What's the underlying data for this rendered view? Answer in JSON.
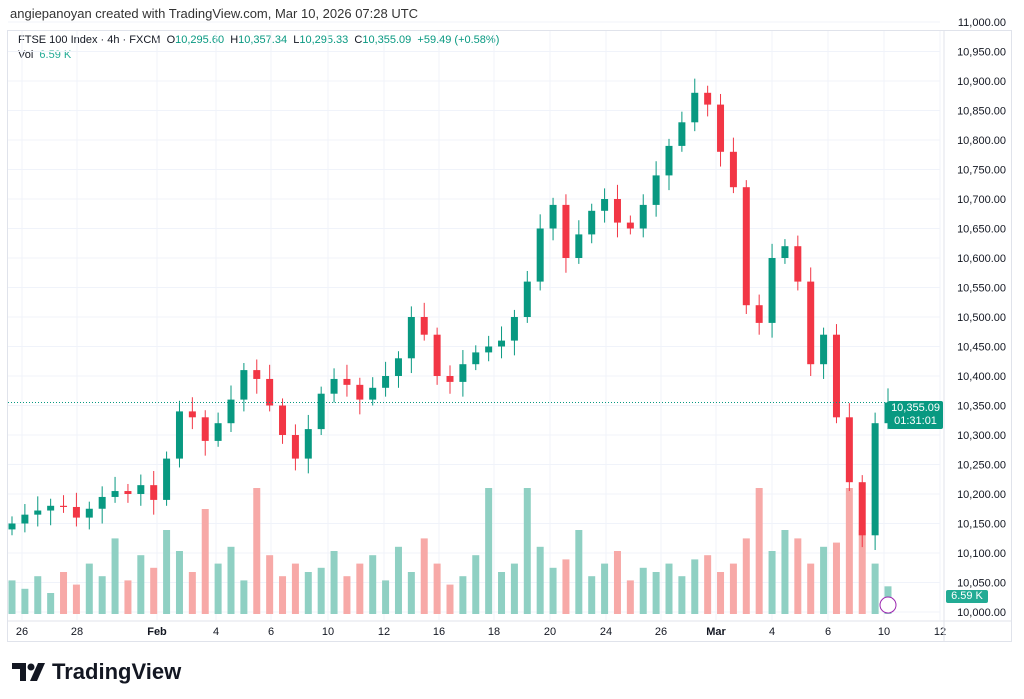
{
  "credit": "angiepanoyan created with TradingView.com, Mar 10, 2026 07:28 UTC",
  "legend": {
    "symbol": "FTSE 100 Index · 4h · FXCM",
    "o_label": "O",
    "o": "10,295.60",
    "h_label": "H",
    "h": "10,357.34",
    "l_label": "L",
    "l": "10,295.33",
    "c_label": "C",
    "c": "10,355.09",
    "change": "+59.49 (+0.58%)",
    "vol_label": "Vol",
    "vol": "6.59 K"
  },
  "price_label": {
    "price": "10,355.09",
    "countdown": "01:31:01"
  },
  "vol_label": "6.59 K",
  "logo": "TradingView",
  "colors": {
    "up": "#089981",
    "down": "#f23645",
    "vol_up": "#8fd0c3",
    "vol_down": "#f7a9a7"
  },
  "chart_data": {
    "type": "candlestick",
    "title": "FTSE 100 Index · 4h · FXCM",
    "ylim": [
      10000,
      11000
    ],
    "y_ticks": [
      "11,000.00",
      "10,950.00",
      "10,900.00",
      "10,850.00",
      "10,800.00",
      "10,750.00",
      "10,700.00",
      "10,650.00",
      "10,600.00",
      "10,550.00",
      "10,500.00",
      "10,450.00",
      "10,400.00",
      "10,350.00",
      "10,300.00",
      "10,250.00",
      "10,200.00",
      "10,150.00",
      "10,100.00",
      "10,050.00",
      "10,000.00"
    ],
    "x_ticks": [
      "26",
      "28",
      "Feb",
      "4",
      "6",
      "10",
      "12",
      "16",
      "18",
      "20",
      "24",
      "26",
      "Mar",
      "4",
      "6",
      "10",
      "12"
    ],
    "start_open": 10140,
    "closes": [
      10150,
      10165,
      10172,
      10180,
      10178,
      10160,
      10175,
      10195,
      10205,
      10200,
      10215,
      10190,
      10260,
      10340,
      10330,
      10290,
      10320,
      10360,
      10410,
      10395,
      10350,
      10300,
      10260,
      10310,
      10370,
      10395,
      10385,
      10360,
      10380,
      10400,
      10430,
      10500,
      10470,
      10400,
      10390,
      10420,
      10440,
      10450,
      10460,
      10500,
      10560,
      10650,
      10690,
      10600,
      10640,
      10680,
      10700,
      10660,
      10650,
      10690,
      10740,
      10790,
      10830,
      10880,
      10860,
      10780,
      10720,
      10520,
      10490,
      10600,
      10620,
      10560,
      10420,
      10470,
      10330,
      10220,
      10130,
      10320,
      10355
    ],
    "volumes_k": [
      8,
      6,
      9,
      5,
      10,
      7,
      12,
      9,
      18,
      8,
      14,
      11,
      20,
      15,
      10,
      25,
      12,
      16,
      8,
      30,
      14,
      9,
      12,
      10,
      11,
      15,
      9,
      12,
      14,
      8,
      16,
      10,
      18,
      12,
      7,
      9,
      14,
      30,
      10,
      12,
      30,
      16,
      11,
      13,
      20,
      9,
      12,
      15,
      8,
      11,
      10,
      12,
      9,
      13,
      14,
      10,
      12,
      18,
      30,
      15,
      20,
      18,
      12,
      16,
      17,
      30,
      20,
      12,
      6.59
    ]
  }
}
